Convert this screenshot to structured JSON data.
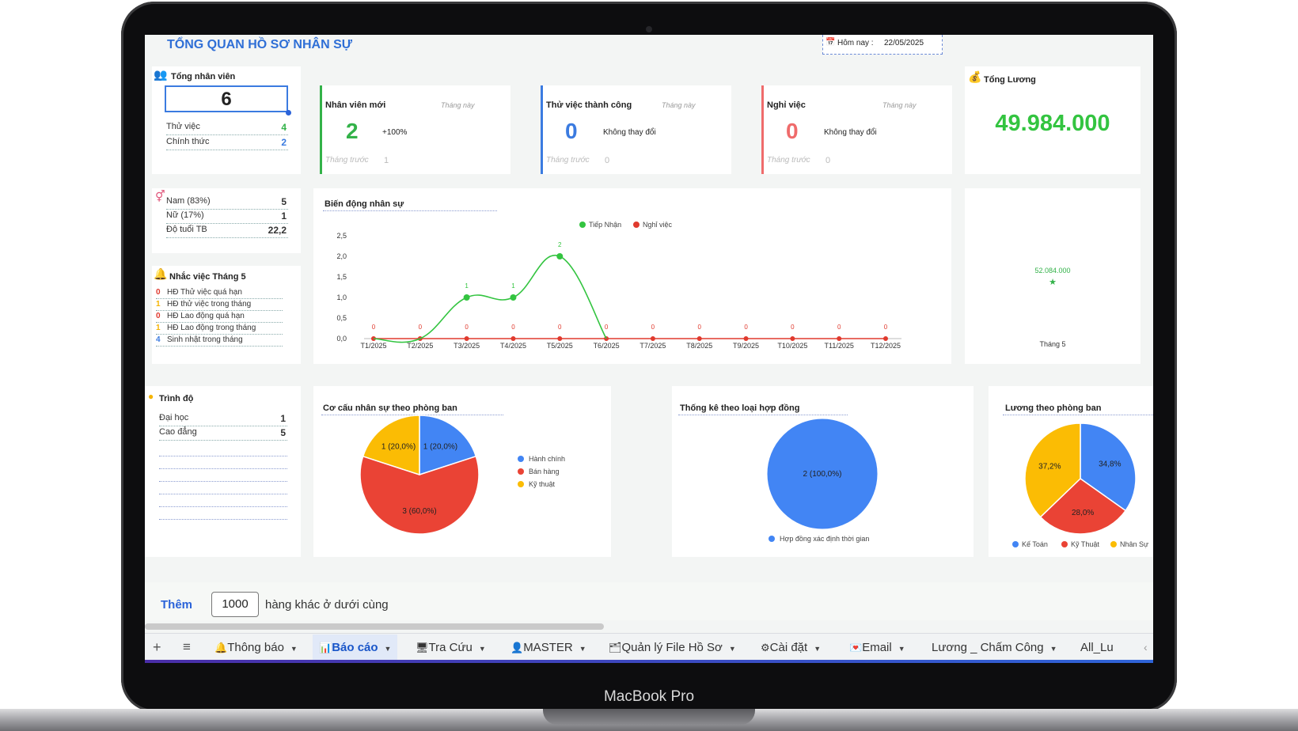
{
  "device_label": "MacBook Pro",
  "header": {
    "title": "TỔNG QUAN HỒ SƠ NHÂN SỰ",
    "today_label": "Hôm nay :",
    "today_value": "22/05/2025"
  },
  "total_staff": {
    "title": "Tổng nhân viên",
    "value": "6",
    "rows": [
      {
        "label": "Thử việc",
        "value": "4",
        "color": "#33b249"
      },
      {
        "label": "Chính thức",
        "value": "2",
        "color": "#3b7be0"
      }
    ]
  },
  "kpi": [
    {
      "title": "Nhân viên mới",
      "period": "Tháng này",
      "value": "2",
      "change": "+100%",
      "prev_label": "Tháng trước",
      "prev_value": "1",
      "color": "#33b249"
    },
    {
      "title": "Thử việc thành công",
      "period": "Tháng này",
      "value": "0",
      "change": "Không thay đổi",
      "prev_label": "Tháng trước",
      "prev_value": "0",
      "color": "#3b7be0"
    },
    {
      "title": "Nghỉ việc",
      "period": "Tháng này",
      "value": "0",
      "change": "Không thay đổi",
      "prev_label": "Tháng trước",
      "prev_value": "0",
      "color": "#ef6b6b"
    }
  ],
  "salary": {
    "title": "Tổng Lương",
    "value": "49.984.000",
    "mini_value": "52.084.000",
    "mini_label": "Tháng 5"
  },
  "gender": {
    "rows": [
      {
        "label": "Nam (83%)",
        "value": "5"
      },
      {
        "label": "Nữ (17%)",
        "value": "1"
      },
      {
        "label": "Độ tuổi TB",
        "value": "22,2"
      }
    ]
  },
  "reminders": {
    "title": "Nhắc việc Tháng 5",
    "items": [
      {
        "count": "0",
        "label": "HĐ Thử việc quá hạn",
        "color": "#e03a2e"
      },
      {
        "count": "1",
        "label": "HĐ thử việc trong tháng",
        "color": "#f5b400"
      },
      {
        "count": "0",
        "label": "HĐ Lao động quá hạn",
        "color": "#e03a2e"
      },
      {
        "count": "1",
        "label": "HĐ Lao động trong tháng",
        "color": "#f5b400"
      },
      {
        "count": "4",
        "label": "Sinh nhật trong tháng",
        "color": "#3b7be0"
      }
    ]
  },
  "education": {
    "title": "Trình độ",
    "rows": [
      {
        "label": "Đại học",
        "value": "1"
      },
      {
        "label": "Cao đẳng",
        "value": "5"
      }
    ]
  },
  "chart_titles": {
    "line": "Biến động nhân sự",
    "dept": "Cơ cấu nhân sự theo phòng ban",
    "contract": "Thống kê theo loại hợp đồng",
    "salary_dept": "Lương theo phòng ban"
  },
  "chart_data": [
    {
      "type": "line",
      "title": "Biến động nhân sự",
      "categories": [
        "T1/2025",
        "T2/2025",
        "T3/2025",
        "T4/2025",
        "T5/2025",
        "T6/2025",
        "T7/2025",
        "T8/2025",
        "T9/2025",
        "T10/2025",
        "T11/2025",
        "T12/2025"
      ],
      "series": [
        {
          "name": "Tiếp Nhận",
          "color": "#33c440",
          "values": [
            0,
            0,
            1,
            1,
            2,
            0,
            0,
            0,
            0,
            0,
            0,
            0
          ],
          "labels": [
            "",
            "",
            "1",
            "1",
            "2",
            "",
            "",
            "",
            "",
            "",
            "",
            ""
          ]
        },
        {
          "name": "Nghỉ việc",
          "color": "#e03a2e",
          "values": [
            0,
            0,
            0,
            0,
            0,
            0,
            0,
            0,
            0,
            0,
            0,
            0
          ],
          "labels": [
            "0",
            "0",
            "0",
            "0",
            "0",
            "0",
            "0",
            "0",
            "0",
            "0",
            "0",
            "0"
          ]
        }
      ],
      "ylim": [
        0,
        2.5
      ],
      "yticks": [
        "0,0",
        "0,5",
        "1,0",
        "1,5",
        "2,0",
        "2,5"
      ],
      "legend": "top"
    },
    {
      "type": "pie",
      "title": "Cơ cấu nhân sự theo phòng ban",
      "slices": [
        {
          "label": "Hành chính",
          "value": 1,
          "text": "1 (20,0%)",
          "color": "#4285f4"
        },
        {
          "label": "Bán hàng",
          "value": 3,
          "text": "3 (60,0%)",
          "color": "#ea4335"
        },
        {
          "label": "Kỹ thuật",
          "value": 1,
          "text": "1 (20,0%)",
          "color": "#fbbc04"
        }
      ],
      "legend": "right"
    },
    {
      "type": "pie",
      "title": "Thống kê theo loại hợp đồng",
      "slices": [
        {
          "label": "Hợp đồng xác định thời gian",
          "value": 2,
          "text": "2 (100,0%)",
          "color": "#4285f4"
        }
      ],
      "legend": "bottom"
    },
    {
      "type": "pie",
      "title": "Lương theo phòng ban",
      "slices": [
        {
          "label": "Kế Toán",
          "value": 34.8,
          "text": "34,8%",
          "color": "#4285f4"
        },
        {
          "label": "Kỹ Thuật",
          "value": 28.0,
          "text": "28,0%",
          "color": "#ea4335"
        },
        {
          "label": "Nhân Sự",
          "value": 37.2,
          "text": "37,2%",
          "color": "#fbbc04"
        }
      ],
      "legend": "bottom"
    },
    {
      "type": "scatter",
      "title": "",
      "categories": [
        "Tháng 5"
      ],
      "values": [
        52084000
      ],
      "labels": [
        "52.084.000"
      ],
      "color": "#33b249"
    }
  ],
  "add_rows": {
    "button": "Thêm",
    "count": "1000",
    "suffix": "hàng khác ở dưới cùng"
  },
  "sheet_tabs": [
    {
      "icon": "🔔",
      "label": "Thông báo",
      "active": false
    },
    {
      "icon": "📊",
      "label": "Báo cáo",
      "active": true
    },
    {
      "icon": "🖥",
      "label": "Tra Cứu",
      "active": false
    },
    {
      "icon": "👤",
      "label": "MASTER",
      "active": false
    },
    {
      "icon": "🗂",
      "label": "Quản lý File Hồ Sơ",
      "active": false
    },
    {
      "icon": "⚙",
      "label": "Cài đặt",
      "active": false
    },
    {
      "icon": "💌",
      "label": "Email",
      "active": false
    },
    {
      "icon": "",
      "label": "Lương _ Chấm Công",
      "active": false
    },
    {
      "icon": "",
      "label": "All_Lu",
      "active": false
    }
  ]
}
